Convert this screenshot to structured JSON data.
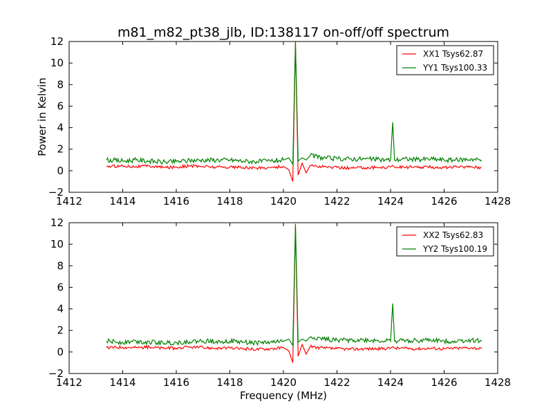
{
  "title": "m81_m82_pt38_jlb, ID:138117 on-off/off spectrum",
  "chart_data": [
    {
      "type": "line",
      "ylabel": "Power in Kelvin",
      "xlabel": "",
      "xlim": [
        1412,
        1428
      ],
      "ylim": [
        -2,
        12
      ],
      "xticks": [
        "1412",
        "1414",
        "1416",
        "1418",
        "1420",
        "1422",
        "1424",
        "1426",
        "1428"
      ],
      "yticks": [
        "−2",
        "0",
        "2",
        "4",
        "6",
        "8",
        "10",
        "12"
      ],
      "legend_position": "top-right",
      "x": [
        1413.4,
        1414.0,
        1414.5,
        1415.0,
        1415.5,
        1416.0,
        1416.5,
        1417.0,
        1417.5,
        1418.0,
        1418.5,
        1419.0,
        1419.5,
        1420.0,
        1420.2,
        1420.35,
        1420.45,
        1420.55,
        1420.7,
        1420.85,
        1421.0,
        1421.5,
        1422.0,
        1422.5,
        1423.0,
        1423.5,
        1424.0,
        1424.08,
        1424.15,
        1424.5,
        1425.0,
        1425.5,
        1426.0,
        1426.5,
        1427.0,
        1427.4
      ],
      "series": [
        {
          "name": "XX1 Tsys62.87",
          "color": "#ff0000",
          "values": [
            0.4,
            0.45,
            0.4,
            0.45,
            0.3,
            0.35,
            0.45,
            0.4,
            0.35,
            0.35,
            0.3,
            0.25,
            0.3,
            0.4,
            0.1,
            -1.0,
            11.8,
            -0.4,
            0.7,
            -0.2,
            0.5,
            0.35,
            0.3,
            0.25,
            0.3,
            0.3,
            0.35,
            0.5,
            0.35,
            0.35,
            0.3,
            0.35,
            0.3,
            0.35,
            0.4,
            0.3
          ]
        },
        {
          "name": "YY1 Tsys100.33",
          "color": "#008000",
          "values": [
            1.0,
            0.9,
            1.0,
            0.9,
            0.8,
            0.85,
            0.95,
            1.0,
            1.0,
            1.0,
            0.9,
            0.85,
            0.9,
            1.0,
            1.2,
            0.6,
            12.0,
            0.9,
            1.2,
            1.0,
            1.4,
            1.2,
            1.1,
            1.1,
            1.1,
            1.05,
            1.0,
            4.5,
            1.0,
            1.1,
            1.05,
            1.1,
            1.0,
            1.0,
            1.1,
            1.0
          ]
        }
      ]
    },
    {
      "type": "line",
      "ylabel": "",
      "xlabel": "Frequency (MHz)",
      "xlim": [
        1412,
        1428
      ],
      "ylim": [
        -2,
        12
      ],
      "xticks": [
        "1412",
        "1414",
        "1416",
        "1418",
        "1420",
        "1422",
        "1424",
        "1426",
        "1428"
      ],
      "yticks": [
        "−2",
        "0",
        "2",
        "4",
        "6",
        "8",
        "10",
        "12"
      ],
      "legend_position": "top-right",
      "x": [
        1413.4,
        1414.0,
        1414.5,
        1415.0,
        1415.5,
        1416.0,
        1416.5,
        1417.0,
        1417.5,
        1418.0,
        1418.5,
        1419.0,
        1419.5,
        1420.0,
        1420.2,
        1420.35,
        1420.45,
        1420.55,
        1420.7,
        1420.85,
        1421.0,
        1421.5,
        1422.0,
        1422.5,
        1423.0,
        1423.5,
        1424.0,
        1424.08,
        1424.15,
        1424.5,
        1425.0,
        1425.5,
        1426.0,
        1426.5,
        1427.0,
        1427.4
      ],
      "series": [
        {
          "name": "XX2 Tsys62.83",
          "color": "#ff0000",
          "values": [
            0.4,
            0.45,
            0.4,
            0.45,
            0.35,
            0.35,
            0.45,
            0.4,
            0.35,
            0.35,
            0.3,
            0.25,
            0.3,
            0.4,
            0.1,
            -1.0,
            11.7,
            -0.4,
            0.7,
            -0.2,
            0.5,
            0.35,
            0.3,
            0.25,
            0.3,
            0.3,
            0.35,
            0.5,
            0.35,
            0.35,
            0.3,
            0.35,
            0.3,
            0.35,
            0.4,
            0.3
          ]
        },
        {
          "name": "YY2 Tsys100.19",
          "color": "#008000",
          "values": [
            1.0,
            0.9,
            1.0,
            0.9,
            0.85,
            0.85,
            0.95,
            1.0,
            1.0,
            1.0,
            0.9,
            0.85,
            0.9,
            1.0,
            1.2,
            0.6,
            11.9,
            0.9,
            1.2,
            1.0,
            1.4,
            1.2,
            1.1,
            1.1,
            1.1,
            1.05,
            1.0,
            4.5,
            1.0,
            1.1,
            1.05,
            1.1,
            1.0,
            1.0,
            1.1,
            1.0
          ]
        }
      ]
    }
  ]
}
